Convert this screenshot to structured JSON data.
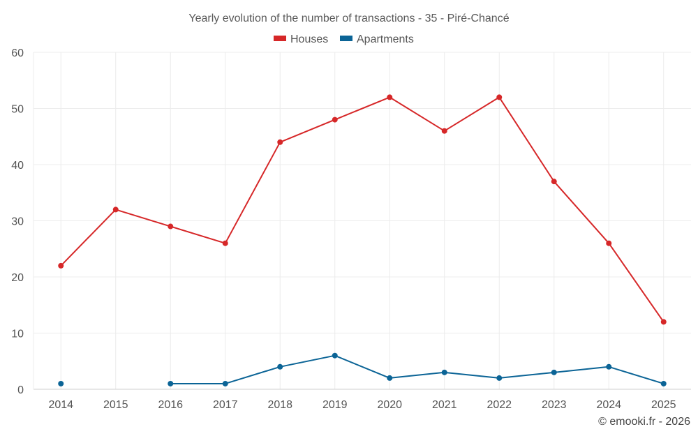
{
  "chart_data": {
    "type": "line",
    "title": "Yearly evolution of the number of transactions - 35 - Piré-Chancé",
    "x": [
      "2014",
      "2015",
      "2016",
      "2017",
      "2018",
      "2019",
      "2020",
      "2021",
      "2022",
      "2023",
      "2024",
      "2025"
    ],
    "ylim": [
      0,
      60
    ],
    "yticks": [
      0,
      10,
      20,
      30,
      40,
      50,
      60
    ],
    "grid": true,
    "legend_position": "top-center",
    "series": [
      {
        "name": "Houses",
        "color": "#d62728",
        "values": [
          22,
          32,
          29,
          26,
          44,
          48,
          52,
          46,
          52,
          37,
          26,
          12
        ]
      },
      {
        "name": "Apartments",
        "color": "#0b6496",
        "values": [
          1,
          null,
          1,
          1,
          4,
          6,
          2,
          3,
          2,
          3,
          4,
          1
        ]
      }
    ],
    "credit": "© emooki.fr - 2026"
  }
}
